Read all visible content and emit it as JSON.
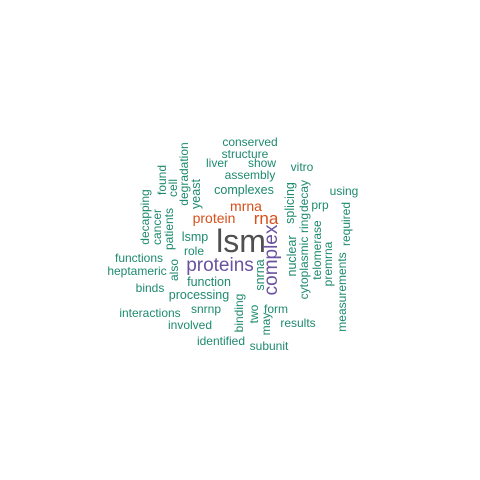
{
  "palette": {
    "dark": "#505050",
    "purple": "#6a52a0",
    "orange": "#d5501a",
    "teal": "#1e8a6e"
  },
  "words": [
    {
      "text": "lsm"
    },
    {
      "text": "proteins"
    },
    {
      "text": "complex"
    },
    {
      "text": "rna"
    },
    {
      "text": "mrna"
    },
    {
      "text": "protein"
    },
    {
      "text": "lsmp"
    },
    {
      "text": "complexes"
    },
    {
      "text": "conserved"
    },
    {
      "text": "structure"
    },
    {
      "text": "liver"
    },
    {
      "text": "show"
    },
    {
      "text": "vitro"
    },
    {
      "text": "assembly"
    },
    {
      "text": "using"
    },
    {
      "text": "prp"
    },
    {
      "text": "yeast"
    },
    {
      "text": "degradation"
    },
    {
      "text": "cell"
    },
    {
      "text": "found"
    },
    {
      "text": "decapping"
    },
    {
      "text": "cancer"
    },
    {
      "text": "patients"
    },
    {
      "text": "role"
    },
    {
      "text": "functions"
    },
    {
      "text": "heptameric"
    },
    {
      "text": "also"
    },
    {
      "text": "function"
    },
    {
      "text": "binds"
    },
    {
      "text": "processing"
    },
    {
      "text": "snrnp"
    },
    {
      "text": "interactions"
    },
    {
      "text": "involved"
    },
    {
      "text": "identified"
    },
    {
      "text": "subunit"
    },
    {
      "text": "binding"
    },
    {
      "text": "two"
    },
    {
      "text": "may"
    },
    {
      "text": "form"
    },
    {
      "text": "results"
    },
    {
      "text": "snrna"
    },
    {
      "text": "nuclear"
    },
    {
      "text": "splicing"
    },
    {
      "text": "cytoplasmic"
    },
    {
      "text": "ring"
    },
    {
      "text": "decay"
    },
    {
      "text": "telomerase"
    },
    {
      "text": "premrna"
    },
    {
      "text": "required"
    },
    {
      "text": "measurements"
    }
  ]
}
